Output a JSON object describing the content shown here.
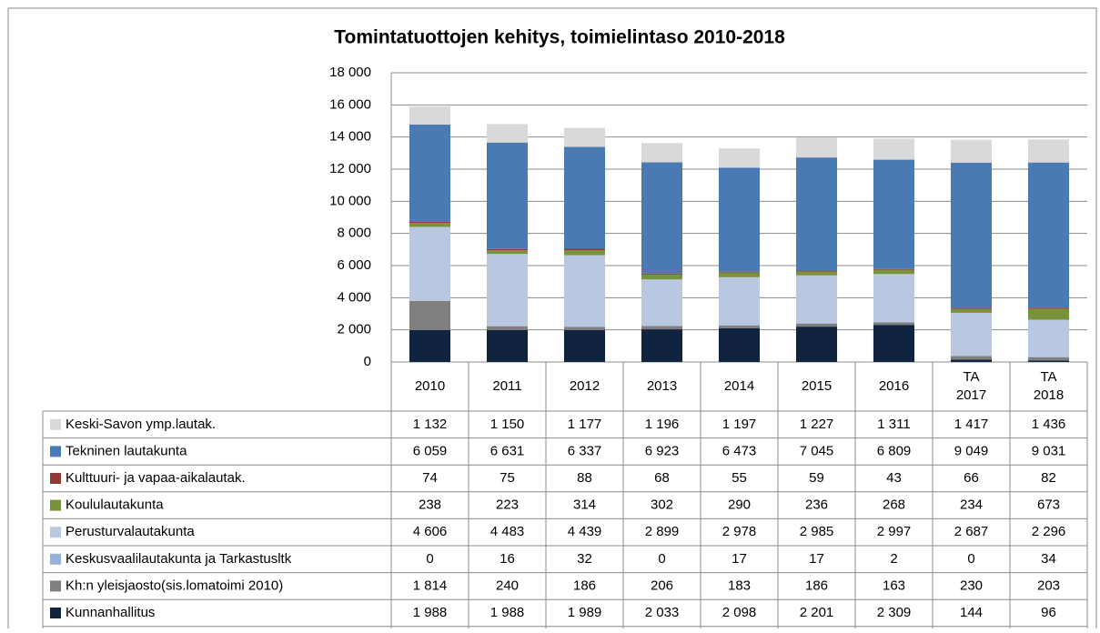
{
  "chart_data": {
    "type": "stacked_bar",
    "title": "Tomintatuottojen kehitys, toimielintaso 2010-2018",
    "categories": [
      "2010",
      "2011",
      "2012",
      "2013",
      "2014",
      "2015",
      "2016",
      "TA 2017",
      "TA 2018"
    ],
    "ylim": [
      0,
      18000
    ],
    "yticks": [
      0,
      {
        "value": 2000,
        "label": "2 000"
      },
      {
        "value": 4000,
        "label": "4 000"
      },
      {
        "value": 6000,
        "label": "6 000"
      },
      {
        "value": 8000,
        "label": "8 000"
      },
      {
        "value": 10000,
        "label": "10 000"
      },
      {
        "value": 12000,
        "label": "12 000"
      },
      {
        "value": 14000,
        "label": "14 000"
      },
      {
        "value": 16000,
        "label": "16 000"
      },
      {
        "value": 18000,
        "label": "18 000"
      }
    ],
    "grid": true,
    "series": [
      {
        "name": "Kunnanhallitus",
        "color": "#10243f",
        "values": [
          1988,
          1988,
          1989,
          2033,
          2098,
          2201,
          2309,
          144,
          96
        ],
        "value_labels": [
          "1 988",
          "1 988",
          "1 989",
          "2 033",
          "2 098",
          "2 201",
          "2 309",
          "144",
          "96"
        ]
      },
      {
        "name": "Kh:n yleisjaosto(sis.lomatoimi 2010)",
        "color": "#7f7f7f",
        "values": [
          1814,
          240,
          186,
          206,
          183,
          186,
          163,
          230,
          203
        ],
        "value_labels": [
          "1 814",
          "240",
          "186",
          "206",
          "183",
          "186",
          "163",
          "230",
          "203"
        ]
      },
      {
        "name": "Keskusvaalilautakunta ja Tarkastusltk",
        "color": "#95b3d7",
        "values": [
          0,
          16,
          32,
          0,
          17,
          17,
          2,
          0,
          34
        ],
        "value_labels": [
          "0",
          "16",
          "32",
          "0",
          "17",
          "17",
          "2",
          "0",
          "34"
        ]
      },
      {
        "name": "Perusturvalautakunta",
        "color": "#b9c7e1",
        "values": [
          4606,
          4483,
          4439,
          2899,
          2978,
          2985,
          2997,
          2687,
          2296
        ],
        "value_labels": [
          "4 606",
          "4 483",
          "4 439",
          "2 899",
          "2 978",
          "2 985",
          "2 997",
          "2 687",
          "2 296"
        ]
      },
      {
        "name": "Koululautakunta",
        "color": "#77933c",
        "values": [
          238,
          223,
          314,
          302,
          290,
          236,
          268,
          234,
          673
        ],
        "value_labels": [
          "238",
          "223",
          "314",
          "302",
          "290",
          "236",
          "268",
          "234",
          "673"
        ]
      },
      {
        "name": "Kulttuuri- ja vapaa-aikalautak.",
        "color": "#953735",
        "values": [
          74,
          75,
          88,
          68,
          55,
          59,
          43,
          66,
          82
        ],
        "value_labels": [
          "74",
          "75",
          "88",
          "68",
          "55",
          "59",
          "43",
          "66",
          "82"
        ]
      },
      {
        "name": "Tekninen lautakunta",
        "color": "#4a7ab4",
        "values": [
          6059,
          6631,
          6337,
          6923,
          6473,
          7045,
          6809,
          9049,
          9031
        ],
        "value_labels": [
          "6 059",
          "6 631",
          "6 337",
          "6 923",
          "6 473",
          "7 045",
          "6 809",
          "9 049",
          "9 031"
        ]
      },
      {
        "name": "Keski-Savon ymp.lautak.",
        "color": "#d9d9d9",
        "values": [
          1132,
          1150,
          1177,
          1196,
          1197,
          1227,
          1311,
          1417,
          1436
        ],
        "value_labels": [
          "1 132",
          "1 150",
          "1 177",
          "1 196",
          "1 197",
          "1 227",
          "1 311",
          "1 417",
          "1 436"
        ]
      }
    ]
  }
}
